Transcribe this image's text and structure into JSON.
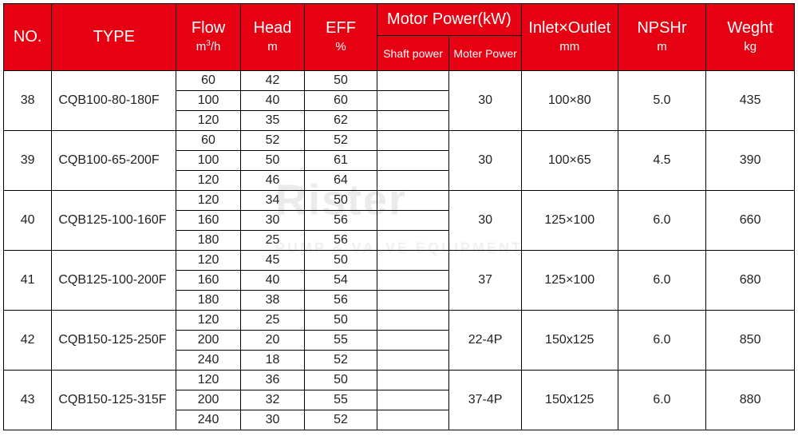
{
  "watermark": {
    "text1": "Rister",
    "text2": "PUMP & VALVE EQUIPMENT"
  },
  "header": {
    "no": "NO.",
    "type": "TYPE",
    "flow": "Flow",
    "flow_unit": "m³/h",
    "head": "Head",
    "head_unit": "m",
    "eff": "EFF",
    "eff_unit": "%",
    "motor_power": "Motor Power(kW)",
    "shaft_power": "Shaft power",
    "moter_power": "Moter Power",
    "inlet_outlet": "Inlet×Outlet",
    "inlet_outlet_unit": "mm",
    "npshr": "NPSHr",
    "npshr_unit": "m",
    "weight": "Weght",
    "weight_unit": "kg"
  },
  "rows": [
    {
      "no": "38",
      "type": "CQB100-80-180F",
      "sub": [
        {
          "flow": "60",
          "head": "42",
          "eff": "50",
          "shaft": ""
        },
        {
          "flow": "100",
          "head": "40",
          "eff": "60",
          "shaft": ""
        },
        {
          "flow": "120",
          "head": "35",
          "eff": "62",
          "shaft": ""
        }
      ],
      "motor": "30",
      "io": "100×80",
      "npshr": "5.0",
      "wt": "435"
    },
    {
      "no": "39",
      "type": "CQB100-65-200F",
      "sub": [
        {
          "flow": "60",
          "head": "52",
          "eff": "52",
          "shaft": ""
        },
        {
          "flow": "100",
          "head": "50",
          "eff": "61",
          "shaft": ""
        },
        {
          "flow": "120",
          "head": "46",
          "eff": "64",
          "shaft": ""
        }
      ],
      "motor": "30",
      "io": "100×65",
      "npshr": "4.5",
      "wt": "390"
    },
    {
      "no": "40",
      "type": "CQB125-100-160F",
      "sub": [
        {
          "flow": "120",
          "head": "34",
          "eff": "50",
          "shaft": ""
        },
        {
          "flow": "160",
          "head": "30",
          "eff": "56",
          "shaft": ""
        },
        {
          "flow": "180",
          "head": "25",
          "eff": "56",
          "shaft": ""
        }
      ],
      "motor": "30",
      "io": "125×100",
      "npshr": "6.0",
      "wt": "660"
    },
    {
      "no": "41",
      "type": "CQB125-100-200F",
      "sub": [
        {
          "flow": "120",
          "head": "45",
          "eff": "50",
          "shaft": ""
        },
        {
          "flow": "160",
          "head": "40",
          "eff": "54",
          "shaft": ""
        },
        {
          "flow": "180",
          "head": "38",
          "eff": "56",
          "shaft": ""
        }
      ],
      "motor": "37",
      "io": "125×100",
      "npshr": "6.0",
      "wt": "680"
    },
    {
      "no": "42",
      "type": "CQB150-125-250F",
      "sub": [
        {
          "flow": "120",
          "head": "25",
          "eff": "50",
          "shaft": ""
        },
        {
          "flow": "200",
          "head": "20",
          "eff": "55",
          "shaft": ""
        },
        {
          "flow": "240",
          "head": "18",
          "eff": "52",
          "shaft": ""
        }
      ],
      "motor": "22-4P",
      "io": "150x125",
      "npshr": "6.0",
      "wt": "850"
    },
    {
      "no": "43",
      "type": "CQB150-125-315F",
      "sub": [
        {
          "flow": "120",
          "head": "36",
          "eff": "50",
          "shaft": ""
        },
        {
          "flow": "200",
          "head": "32",
          "eff": "55",
          "shaft": ""
        },
        {
          "flow": "240",
          "head": "30",
          "eff": "52",
          "shaft": ""
        }
      ],
      "motor": "37-4P",
      "io": "150x125",
      "npshr": "6.0",
      "wt": "880"
    }
  ],
  "style": {
    "header_bg": "#e50012",
    "header_fg": "#ffffff",
    "border_color": "#000000",
    "body_bg": "#ffffff",
    "body_fg": "#222222",
    "header_font_size_main": 20,
    "header_font_size_sub": 14,
    "body_font_size": 16,
    "row_height_sub": 25,
    "col_widths": {
      "no": 60,
      "type": 155,
      "flow": 80,
      "head": 80,
      "eff": 90,
      "shaft": 90,
      "motor": 90,
      "io": 120,
      "npshr": 110,
      "wt": 110
    }
  }
}
